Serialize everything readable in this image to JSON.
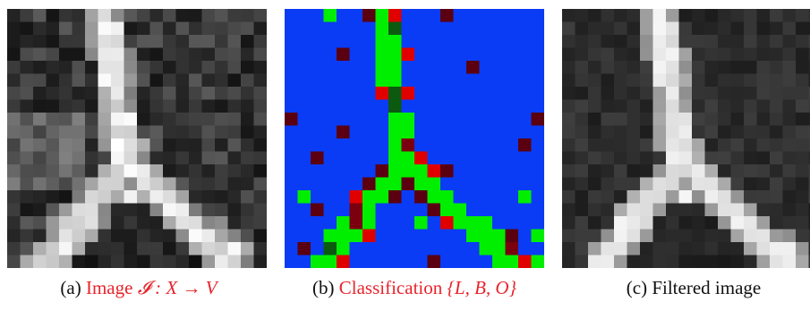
{
  "figure": {
    "panels": [
      {
        "id": "a",
        "caption_prefix": "(a)",
        "caption_word": "Image",
        "caption_math": "𝓘 : X → V",
        "caption_color": "#e8242c"
      },
      {
        "id": "b",
        "caption_prefix": "(b)",
        "caption_word": "Classification",
        "caption_math": "{L, B, O}",
        "caption_color": "#e8242c"
      },
      {
        "id": "c",
        "caption_prefix": "(c)",
        "caption_text": "Filtered image"
      }
    ],
    "classification_colors": {
      "L": "#00ee00",
      "B": "#0a3cf5",
      "O": "#e00000"
    }
  }
}
